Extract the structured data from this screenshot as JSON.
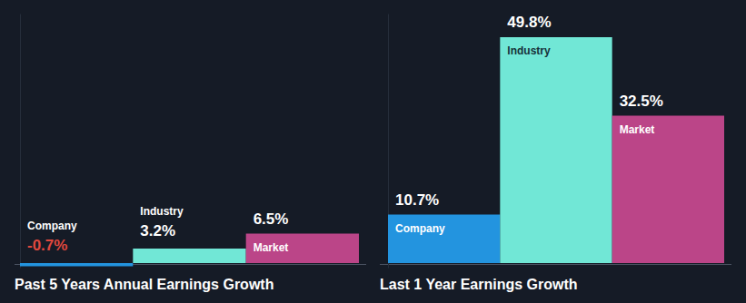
{
  "chart_data": [
    {
      "type": "bar",
      "title": "Past 5 Years Annual Earnings Growth",
      "categories": [
        "Company",
        "Industry",
        "Market"
      ],
      "values": [
        -0.7,
        3.2,
        6.5
      ],
      "value_labels": [
        "-0.7%",
        "3.2%",
        "6.5%"
      ],
      "colors": [
        "#2394df",
        "#71e7d6",
        "#bb4588"
      ],
      "ylim": [
        -1,
        55
      ],
      "yticks": [],
      "data_labels": true,
      "tick_labels": false
    },
    {
      "type": "bar",
      "title": "Last 1 Year Earnings Growth",
      "categories": [
        "Company",
        "Industry",
        "Market"
      ],
      "values": [
        10.7,
        49.8,
        32.5
      ],
      "value_labels": [
        "10.7%",
        "49.8%",
        "32.5%"
      ],
      "colors": [
        "#2394df",
        "#71e7d6",
        "#bb4588"
      ],
      "ylim": [
        -1,
        55
      ],
      "yticks": [],
      "data_labels": true,
      "tick_labels": false
    }
  ]
}
